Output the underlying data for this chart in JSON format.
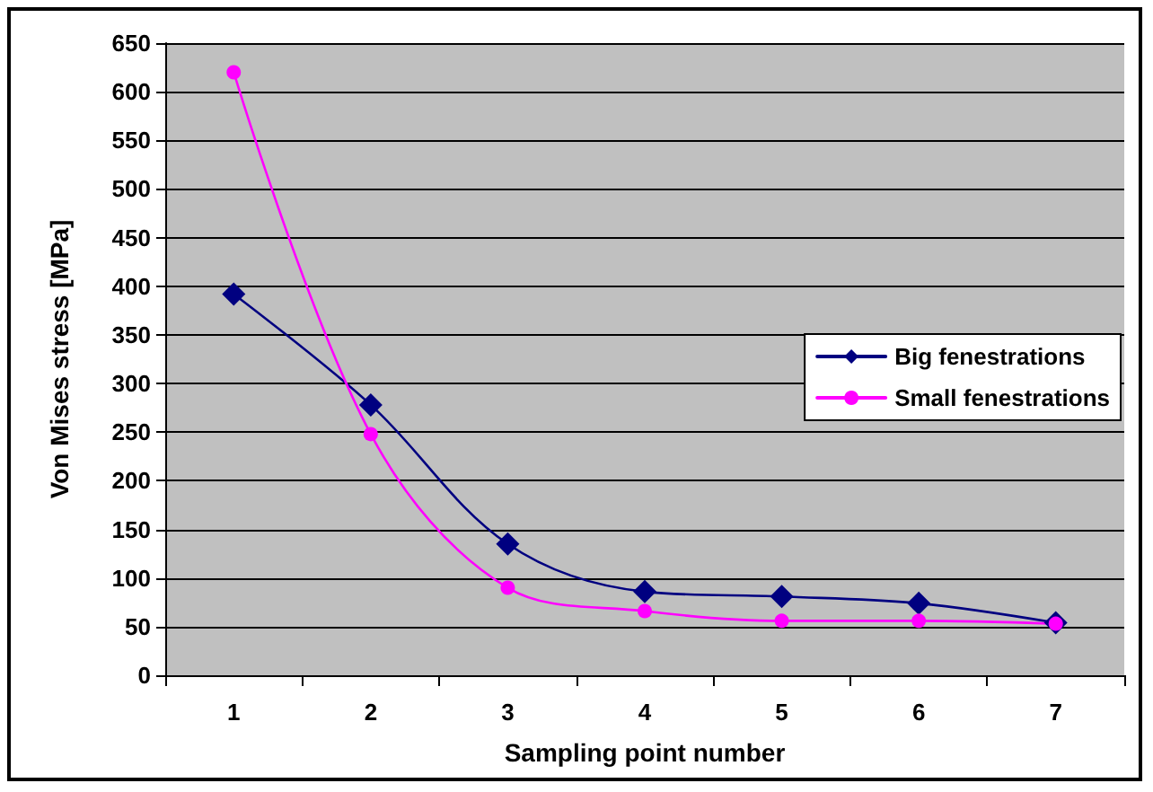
{
  "chart_data": {
    "type": "line",
    "xlabel": "Sampling point number",
    "ylabel": "Von Mises stress [MPa]",
    "categories": [
      "1",
      "2",
      "3",
      "4",
      "5",
      "6",
      "7"
    ],
    "series": [
      {
        "name": "Big fenestrations",
        "color": "#000080",
        "marker": "diamond",
        "values": [
          392,
          278,
          135,
          86,
          81,
          74,
          54
        ]
      },
      {
        "name": "Small fenestrations",
        "color": "#ff00ff",
        "marker": "circle",
        "values": [
          620,
          248,
          90,
          66,
          56,
          56,
          53
        ]
      }
    ],
    "ylim": [
      0,
      650
    ],
    "yticks": [
      0,
      50,
      100,
      150,
      200,
      250,
      300,
      350,
      400,
      450,
      500,
      550,
      600,
      650
    ],
    "grid": "y",
    "legend": "right"
  }
}
